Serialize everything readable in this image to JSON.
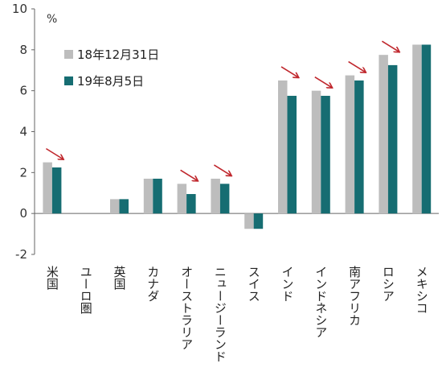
{
  "chart_data": {
    "type": "bar",
    "unit": "%",
    "ylim": [
      -2,
      10
    ],
    "yticks": [
      -2,
      0,
      2,
      4,
      6,
      8,
      10
    ],
    "grid": false,
    "legend_position": "top-left",
    "categories": [
      "米国",
      "ユーロ圏",
      "英国",
      "カナダ",
      "オーストラリア",
      "ニュージーランド",
      "スイス",
      "インド",
      "インドネシア",
      "南アフリカ",
      "ロシア",
      "メキシコ"
    ],
    "series": [
      {
        "name": "18年12月31日",
        "color": "#bdbdbd",
        "values": [
          2.5,
          null,
          0.7,
          1.7,
          1.45,
          1.7,
          -0.75,
          6.5,
          6.0,
          6.75,
          7.75,
          8.25
        ]
      },
      {
        "name": "19年8月5日",
        "color": "#166d72",
        "values": [
          2.25,
          null,
          0.7,
          1.7,
          0.95,
          1.45,
          -0.75,
          5.75,
          5.75,
          6.5,
          7.25,
          8.25
        ]
      }
    ],
    "decline_arrows": [
      "米国",
      "オーストラリア",
      "ニュージーランド",
      "インド",
      "インドネシア",
      "南アフリカ",
      "ロシア"
    ],
    "arrow_color": "#c0272d"
  }
}
